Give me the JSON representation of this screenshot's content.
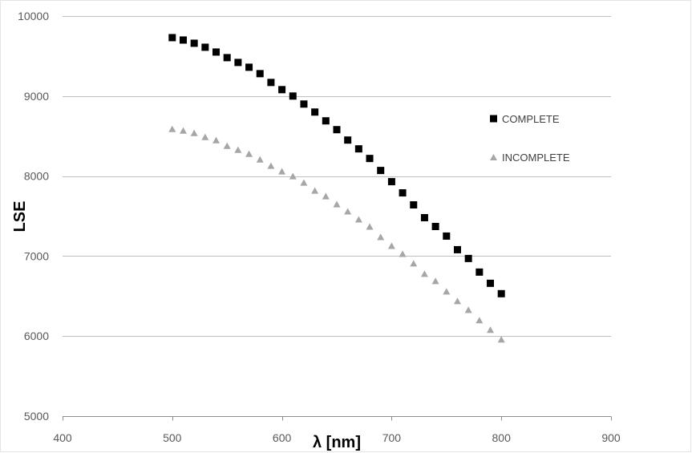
{
  "chart_data": {
    "type": "scatter",
    "title": "",
    "xlabel": "λ [nm]",
    "ylabel": "LSE",
    "xlim": [
      400,
      900
    ],
    "ylim": [
      5000,
      10000
    ],
    "x_ticks": [
      400,
      500,
      600,
      700,
      800,
      900
    ],
    "y_ticks": [
      5000,
      6000,
      7000,
      8000,
      9000,
      10000
    ],
    "x_tick_labels": [
      "400",
      "500",
      "600",
      "700",
      "800",
      "900"
    ],
    "y_tick_labels": [
      "5000",
      "6000",
      "7000",
      "8000",
      "9000",
      "10000"
    ],
    "grid": "horizontal",
    "legend_position": "right",
    "x": [
      500,
      510,
      520,
      530,
      540,
      550,
      560,
      570,
      580,
      590,
      600,
      610,
      620,
      630,
      640,
      650,
      660,
      670,
      680,
      690,
      700,
      710,
      720,
      730,
      740,
      750,
      760,
      770,
      780,
      790,
      800
    ],
    "series": [
      {
        "name": "COMPLETE",
        "marker": "square",
        "color": "#000000",
        "values": [
          9730,
          9700,
          9660,
          9610,
          9550,
          9480,
          9420,
          9360,
          9280,
          9170,
          9080,
          9000,
          8900,
          8800,
          8690,
          8580,
          8450,
          8340,
          8220,
          8070,
          7930,
          7790,
          7640,
          7480,
          7370,
          7250,
          7080,
          6970,
          6800,
          6660,
          6530
        ]
      },
      {
        "name": "INCOMPLETE",
        "marker": "triangle",
        "color": "#a6a6a6",
        "values": [
          8590,
          8570,
          8540,
          8490,
          8450,
          8380,
          8330,
          8280,
          8210,
          8130,
          8060,
          8000,
          7920,
          7820,
          7750,
          7650,
          7560,
          7460,
          7370,
          7240,
          7130,
          7030,
          6910,
          6780,
          6690,
          6560,
          6440,
          6330,
          6200,
          6080,
          5960
        ]
      }
    ]
  }
}
